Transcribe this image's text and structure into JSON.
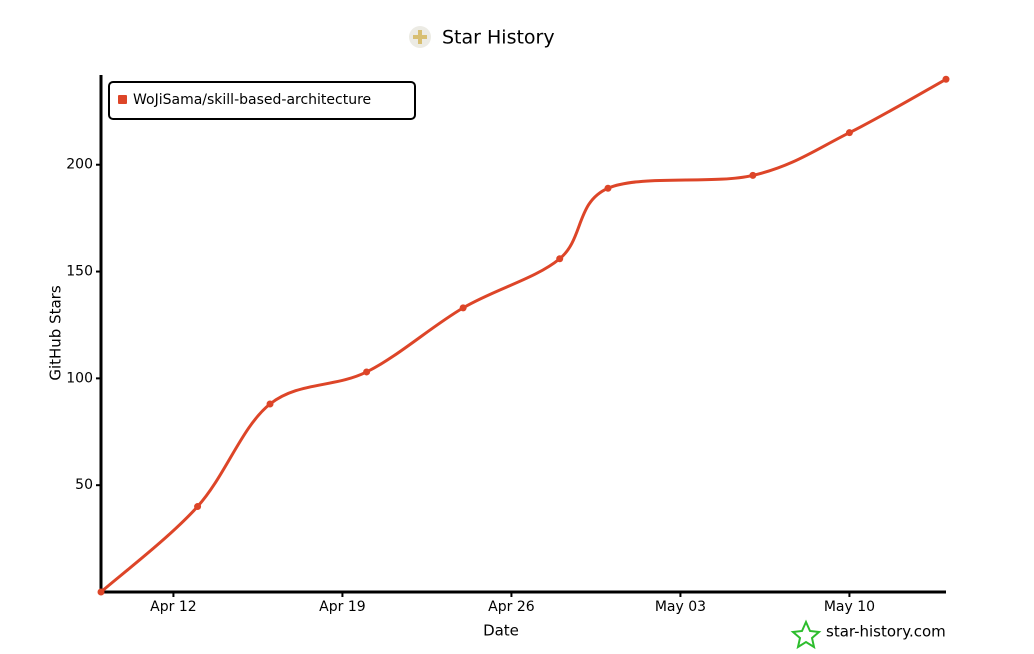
{
  "chart_data": {
    "type": "line",
    "title": "Star History",
    "x_label": "Date",
    "y_label": "GitHub Stars",
    "x": [
      "Apr 09",
      "Apr 13",
      "Apr 16",
      "Apr 20",
      "Apr 24",
      "Apr 28",
      "Apr 30",
      "May 06",
      "May 10",
      "May 14"
    ],
    "series": [
      {
        "name": "WoJiSama/skill-based-architecture",
        "color": "#dd4528",
        "values": [
          0,
          40,
          88,
          103,
          133,
          156,
          189,
          195,
          215,
          240
        ]
      }
    ],
    "xlim": [
      "Apr 09",
      "May 14"
    ],
    "xticks": [
      "Apr 12",
      "Apr 19",
      "Apr 26",
      "May 03",
      "May 10"
    ],
    "ylim": [
      0,
      242
    ],
    "yticks": [
      50,
      100,
      150,
      200
    ],
    "legend": "top-left",
    "grid": false,
    "watermark": "star-history.com"
  }
}
